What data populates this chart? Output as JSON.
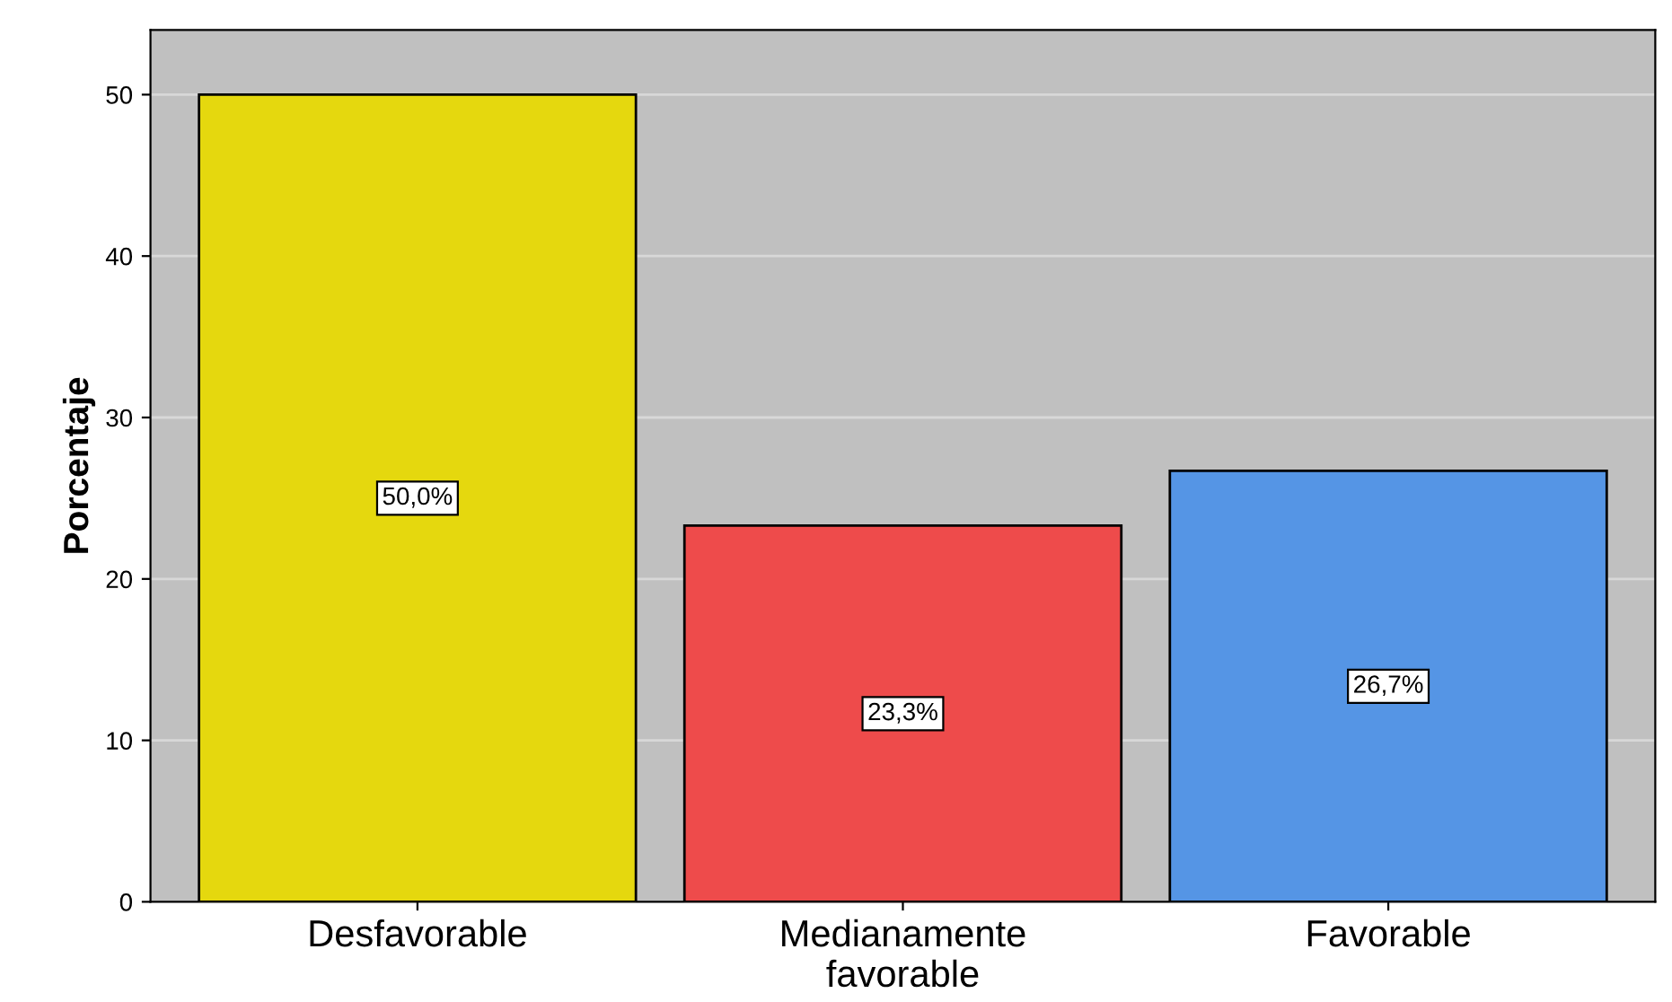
{
  "chart_data": {
    "type": "bar",
    "ylabel": "Porcentaje",
    "categories": [
      "Desfavorable",
      "Medianamente\nfavorable",
      "Favorable"
    ],
    "values": [
      50.0,
      23.3,
      26.7
    ],
    "colors": [
      "#e5d80e",
      "#ee4b4b",
      "#5595e5"
    ],
    "value_labels": [
      "50,0%",
      "23,3%",
      "26,7%"
    ],
    "ylim": [
      0,
      54
    ],
    "yticks": [
      0,
      10,
      20,
      30,
      40,
      50
    ],
    "grid": "y",
    "legend": false
  }
}
